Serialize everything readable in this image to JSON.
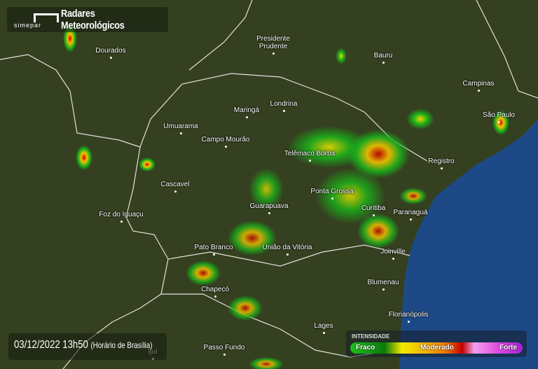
{
  "header": {
    "title": "Radares Meteorológicos",
    "logo_text": "simepar"
  },
  "timestamp": {
    "date_time": "03/12/2022 13h50",
    "timezone": "(Horário de Brasília)"
  },
  "legend": {
    "title": "INTENSIDADE",
    "low": "Fraco",
    "mid": "Moderado",
    "high": "Forte",
    "colors": [
      "#1bc21b",
      "#0b7a0b",
      "#f3ea00",
      "#ec7b00",
      "#c40000",
      "#f2a0f0",
      "#a020d0"
    ]
  },
  "colors": {
    "land": "#34401f",
    "ocean": "#1d4a86",
    "border": "#ffffff"
  },
  "cities": [
    {
      "name": "Dourados"
    },
    {
      "name": "Presidente\nPrudente"
    },
    {
      "name": "Bauru"
    },
    {
      "name": "Campinas"
    },
    {
      "name": "São Paulo"
    },
    {
      "name": "Maringá"
    },
    {
      "name": "Londrina"
    },
    {
      "name": "Umuarama"
    },
    {
      "name": "Campo Mourão"
    },
    {
      "name": "Telêmaco Borba"
    },
    {
      "name": "Registro"
    },
    {
      "name": "Cascavel"
    },
    {
      "name": "Ponta Grossa"
    },
    {
      "name": "Curitiba"
    },
    {
      "name": "Paranaguá"
    },
    {
      "name": "Foz do Iguaçu"
    },
    {
      "name": "Guarapuava"
    },
    {
      "name": "Pato Branco"
    },
    {
      "name": "União da Vitória"
    },
    {
      "name": "Joinville"
    },
    {
      "name": "Chapecó"
    },
    {
      "name": "Blumenau"
    },
    {
      "name": "Florianópolis"
    },
    {
      "name": "Lages"
    },
    {
      "name": "Passo Fundo"
    },
    {
      "name": "Ijuí"
    }
  ]
}
